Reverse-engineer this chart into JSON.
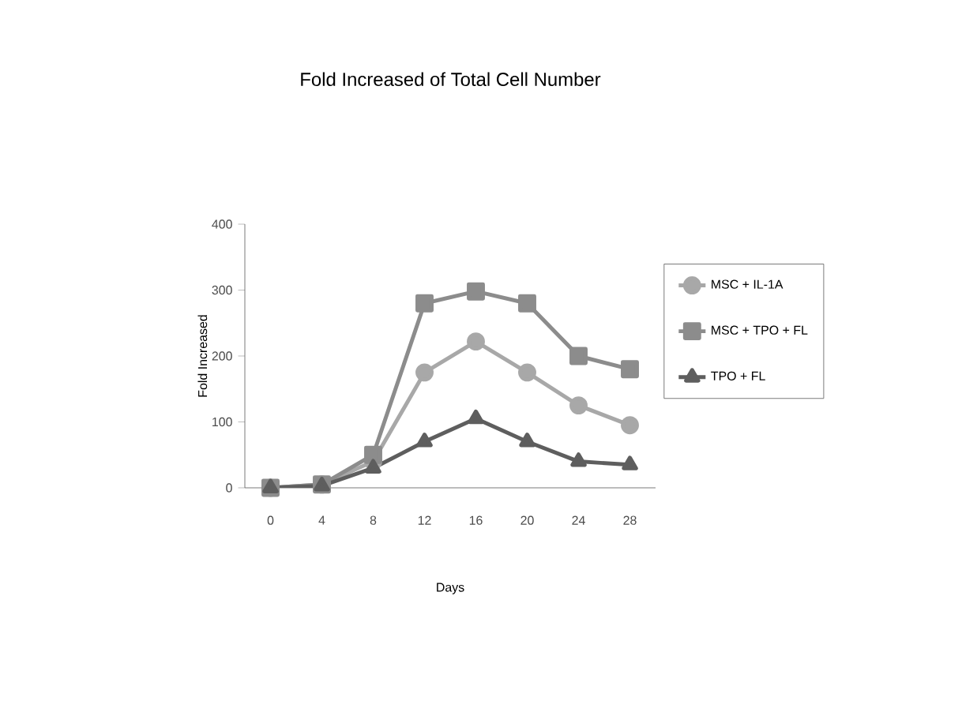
{
  "chart_data": {
    "type": "line",
    "title": "Fold Increased of Total Cell Number",
    "xlabel": "Days",
    "ylabel": "Fold Increased",
    "categories": [
      "0",
      "4",
      "8",
      "12",
      "16",
      "20",
      "24",
      "28"
    ],
    "series": [
      {
        "name": "MSC + IL-1A",
        "color": "#a8a8a8",
        "marker": "circle",
        "values": [
          0,
          5,
          40,
          175,
          222,
          175,
          125,
          95
        ]
      },
      {
        "name": "MSC + TPO + FL",
        "color": "#8c8c8c",
        "marker": "square",
        "values": [
          0,
          5,
          50,
          280,
          298,
          280,
          200,
          180
        ]
      },
      {
        "name": "TPO + FL",
        "color": "#5e5e5e",
        "marker": "triangle",
        "values": [
          0,
          3,
          30,
          70,
          105,
          70,
          40,
          35
        ]
      }
    ],
    "ylim": [
      0,
      400
    ],
    "yticks": [
      0,
      100,
      200,
      300,
      400
    ],
    "grid": false,
    "legend": "right"
  }
}
